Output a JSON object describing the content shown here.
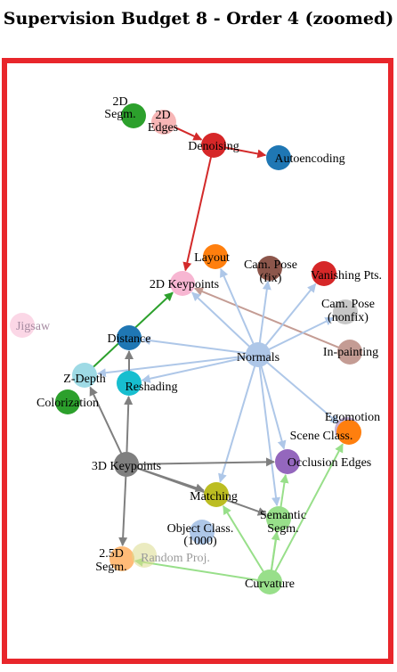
{
  "title": "Supervision Budget 8 - Order 4 (zoomed)",
  "colors": {
    "frame": "#e8262b",
    "edge_red": "#d32a2a",
    "edge_blue": "#aec7e8",
    "edge_green": "#98df8a",
    "edge_dark_green": "#2ca02c",
    "edge_gray": "#7f7f7f",
    "edge_brown": "#c49c94"
  },
  "nodes": [
    {
      "id": "2d_segm",
      "label": "2D\nSegm.",
      "color": "#2ca02c"
    },
    {
      "id": "2d_edges",
      "label": "2D\nEdges",
      "color": "#f7b6b6"
    },
    {
      "id": "denoising",
      "label": "Denoising",
      "color": "#d62728"
    },
    {
      "id": "autoencoding",
      "label": "Autoencoding",
      "color": "#1f77b4"
    },
    {
      "id": "layout",
      "label": "Layout",
      "color": "#ff7f0e"
    },
    {
      "id": "cam_pose_fix",
      "label": "Cam. Pose\n(fix)",
      "color": "#8c564b"
    },
    {
      "id": "vanishing_pts",
      "label": "Vanishing Pts.",
      "color": "#d62728"
    },
    {
      "id": "2d_keypoints",
      "label": "2D Keypoints",
      "color": "#f7b6d2"
    },
    {
      "id": "cam_pose_nonfix",
      "label": "Cam. Pose\n(nonfix)",
      "color": "#c7c7c7"
    },
    {
      "id": "jigsaw",
      "label": "Jigsaw",
      "color": "#f7b6d2"
    },
    {
      "id": "distance",
      "label": "Distance",
      "color": "#1f77b4"
    },
    {
      "id": "normals",
      "label": "Normals",
      "color": "#aec7e8"
    },
    {
      "id": "in_painting",
      "label": "In-painting",
      "color": "#c49c94"
    },
    {
      "id": "z_depth",
      "label": "Z-Depth",
      "color": "#9edae5"
    },
    {
      "id": "reshading",
      "label": "Reshading",
      "color": "#17becf"
    },
    {
      "id": "colorization",
      "label": "Colorization",
      "color": "#2ca02c"
    },
    {
      "id": "egomotion",
      "label": "Egomotion",
      "color": "#c5b0d5"
    },
    {
      "id": "scene_class",
      "label": "Scene Class.",
      "color": "#ff7f0e"
    },
    {
      "id": "3d_keypoints",
      "label": "3D Keypoints",
      "color": "#7f7f7f"
    },
    {
      "id": "occlusion_edges",
      "label": "Occlusion Edges",
      "color": "#9467bd"
    },
    {
      "id": "matching",
      "label": "Matching",
      "color": "#bcbd22"
    },
    {
      "id": "semantic_segm",
      "label": "Semantic\nSegm.",
      "color": "#98df8a"
    },
    {
      "id": "object_class",
      "label": "Object Class.\n(1000)",
      "color": "#aec7e8"
    },
    {
      "id": "2_5d_segm",
      "label": "2.5D\nSegm.",
      "color": "#ffbb78"
    },
    {
      "id": "random_proj",
      "label": "Random Proj.",
      "color": "#dbdb8d"
    },
    {
      "id": "curvature",
      "label": "Curvature",
      "color": "#98df8a"
    }
  ],
  "edges": [
    {
      "from": "2d_edges",
      "to": "denoising",
      "color": "#d32a2a"
    },
    {
      "from": "denoising",
      "to": "autoencoding",
      "color": "#d32a2a"
    },
    {
      "from": "denoising",
      "to": "2d_keypoints",
      "color": "#d32a2a"
    },
    {
      "from": "in_painting",
      "to": "2d_keypoints",
      "color": "#c49c94"
    },
    {
      "from": "z_depth",
      "to": "2d_keypoints",
      "color": "#2ca02c"
    },
    {
      "from": "normals",
      "to": "2d_keypoints",
      "color": "#aec7e8"
    },
    {
      "from": "normals",
      "to": "layout",
      "color": "#aec7e8"
    },
    {
      "from": "normals",
      "to": "cam_pose_fix",
      "color": "#aec7e8"
    },
    {
      "from": "normals",
      "to": "vanishing_pts",
      "color": "#aec7e8"
    },
    {
      "from": "normals",
      "to": "cam_pose_nonfix",
      "color": "#aec7e8"
    },
    {
      "from": "normals",
      "to": "distance",
      "color": "#aec7e8"
    },
    {
      "from": "normals",
      "to": "reshading",
      "color": "#aec7e8"
    },
    {
      "from": "normals",
      "to": "z_depth",
      "color": "#aec7e8"
    },
    {
      "from": "normals",
      "to": "scene_class",
      "color": "#aec7e8"
    },
    {
      "from": "normals",
      "to": "occlusion_edges",
      "color": "#aec7e8"
    },
    {
      "from": "normals",
      "to": "semantic_segm",
      "color": "#aec7e8"
    },
    {
      "from": "normals",
      "to": "matching",
      "color": "#aec7e8"
    },
    {
      "from": "3d_keypoints",
      "to": "z_depth",
      "color": "#7f7f7f"
    },
    {
      "from": "3d_keypoints",
      "to": "reshading",
      "color": "#7f7f7f"
    },
    {
      "from": "3d_keypoints",
      "to": "occlusion_edges",
      "color": "#7f7f7f"
    },
    {
      "from": "3d_keypoints",
      "to": "matching",
      "color": "#7f7f7f"
    },
    {
      "from": "3d_keypoints",
      "to": "2_5d_segm",
      "color": "#7f7f7f"
    },
    {
      "from": "3d_keypoints",
      "to": "semantic_segm",
      "color": "#7f7f7f"
    },
    {
      "from": "reshading",
      "to": "distance",
      "color": "#7f7f7f"
    },
    {
      "from": "curvature",
      "to": "matching",
      "color": "#98df8a"
    },
    {
      "from": "curvature",
      "to": "semantic_segm",
      "color": "#98df8a"
    },
    {
      "from": "curvature",
      "to": "occlusion_edges",
      "color": "#98df8a"
    },
    {
      "from": "curvature",
      "to": "scene_class",
      "color": "#98df8a"
    },
    {
      "from": "curvature",
      "to": "2_5d_segm",
      "color": "#98df8a"
    }
  ]
}
